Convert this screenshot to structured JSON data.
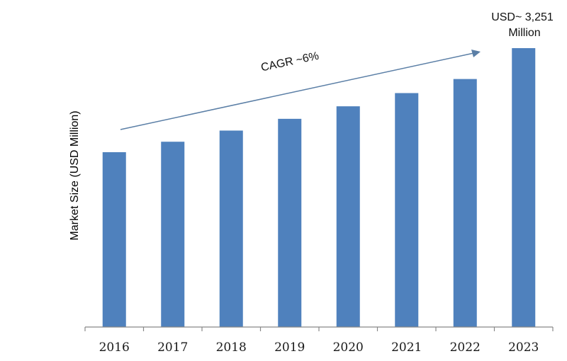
{
  "chart_data": {
    "type": "bar",
    "categories": [
      "2016",
      "2017",
      "2018",
      "2019",
      "2020",
      "2021",
      "2022",
      "2023"
    ],
    "values": [
      2038,
      2160,
      2290,
      2427,
      2573,
      2727,
      2891,
      3251
    ],
    "ylabel": "Market Size (USD Million)",
    "xlabel": "",
    "ylim": [
      0,
      3251
    ],
    "grid": false,
    "bar_color": "#4f81bd",
    "annotations": {
      "cagr": "CAGR ~6%",
      "last_value_line1": "USD~ 3,251",
      "last_value_line2": "Million"
    }
  }
}
